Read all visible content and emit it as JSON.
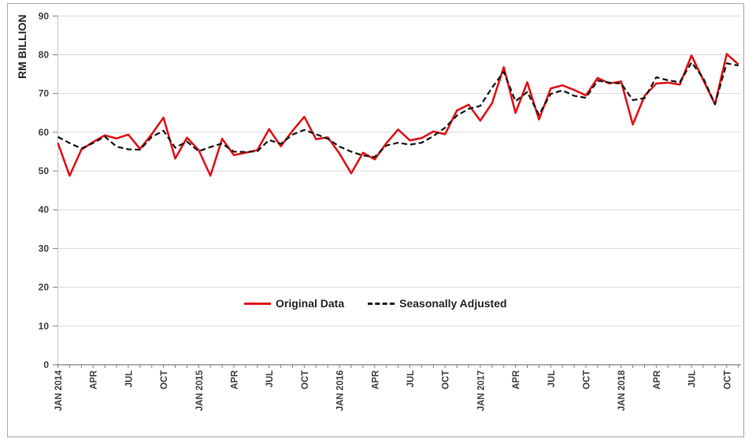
{
  "chart_data": {
    "type": "line",
    "title": "",
    "ylabel": "RM BILLION",
    "ylim": [
      0,
      90
    ],
    "y_ticks": [
      0,
      10,
      20,
      30,
      40,
      50,
      60,
      70,
      80,
      90
    ],
    "grid": "horizontal",
    "x_count": 59,
    "x_period": "monthly, JAN 2014 to NOV 2018",
    "x_tick_labels": [
      {
        "i": 0,
        "t": "JAN 2014"
      },
      {
        "i": 3,
        "t": "APR"
      },
      {
        "i": 6,
        "t": "JUL"
      },
      {
        "i": 9,
        "t": "OCT"
      },
      {
        "i": 12,
        "t": "JAN 2015"
      },
      {
        "i": 15,
        "t": "APR"
      },
      {
        "i": 18,
        "t": "JUL"
      },
      {
        "i": 21,
        "t": "OCT"
      },
      {
        "i": 24,
        "t": "JAN 2016"
      },
      {
        "i": 27,
        "t": "APR"
      },
      {
        "i": 30,
        "t": "JUL"
      },
      {
        "i": 33,
        "t": "OCT"
      },
      {
        "i": 36,
        "t": "JAN 2017"
      },
      {
        "i": 39,
        "t": "APR"
      },
      {
        "i": 42,
        "t": "JUL"
      },
      {
        "i": 45,
        "t": "OCT"
      },
      {
        "i": 48,
        "t": "JAN 2018"
      },
      {
        "i": 51,
        "t": "APR"
      },
      {
        "i": 54,
        "t": "JUL"
      },
      {
        "i": 57,
        "t": "OCT"
      }
    ],
    "series": [
      {
        "name": "Original Data",
        "style": "solid",
        "color": "#e21218",
        "values": [
          57.2,
          48.8,
          55.5,
          57.5,
          59.2,
          58.4,
          59.4,
          55.7,
          59.5,
          63.8,
          53.2,
          58.6,
          55.4,
          48.8,
          58.3,
          54.1,
          54.7,
          55.4,
          60.8,
          56.4,
          60.4,
          64.0,
          58.2,
          58.7,
          54.5,
          49.4,
          54.7,
          53.0,
          57.2,
          60.7,
          57.9,
          58.5,
          60.2,
          59.5,
          65.6,
          67.1,
          63.0,
          67.5,
          76.8,
          65.0,
          72.9,
          63.3,
          71.3,
          72.1,
          70.9,
          69.5,
          74.0,
          72.6,
          73.1,
          62.0,
          69.4,
          72.6,
          72.8,
          72.3,
          79.8,
          73.5,
          67.2,
          80.2,
          77.5
        ]
      },
      {
        "name": "Seasonally Adjusted",
        "style": "dashed",
        "color": "#1a1a1a",
        "values": [
          58.8,
          57.2,
          55.8,
          57.2,
          58.9,
          56.3,
          55.6,
          55.5,
          58.8,
          60.4,
          56.0,
          57.6,
          55.1,
          56.2,
          57.1,
          55.0,
          54.9,
          55.1,
          58.0,
          57.0,
          59.4,
          60.6,
          59.5,
          58.3,
          56.3,
          55.0,
          54.0,
          53.6,
          56.6,
          57.3,
          56.8,
          57.3,
          59.0,
          61.2,
          64.3,
          66.0,
          66.8,
          71.5,
          75.6,
          68.0,
          70.4,
          64.5,
          69.9,
          70.8,
          69.4,
          68.9,
          73.3,
          72.8,
          72.6,
          68.3,
          68.8,
          74.2,
          73.4,
          72.9,
          78.0,
          74.0,
          67.3,
          77.8,
          77.2
        ]
      }
    ],
    "legend_position": "center, above x-axis inside plot"
  },
  "legend": {
    "items": [
      {
        "label": "Original Data",
        "color": "#e21218",
        "style": "solid"
      },
      {
        "label": "Seasonally Adjusted",
        "color": "#1a1a1a",
        "style": "dashed"
      }
    ]
  },
  "axis_colors": {
    "gridline": "#d9d9d9",
    "axis_line": "#808080",
    "y_axis_line": "#c6c6c6",
    "tick_label": "#404040",
    "axis_title": "#262626",
    "frame_border": "#a6a6a6"
  }
}
